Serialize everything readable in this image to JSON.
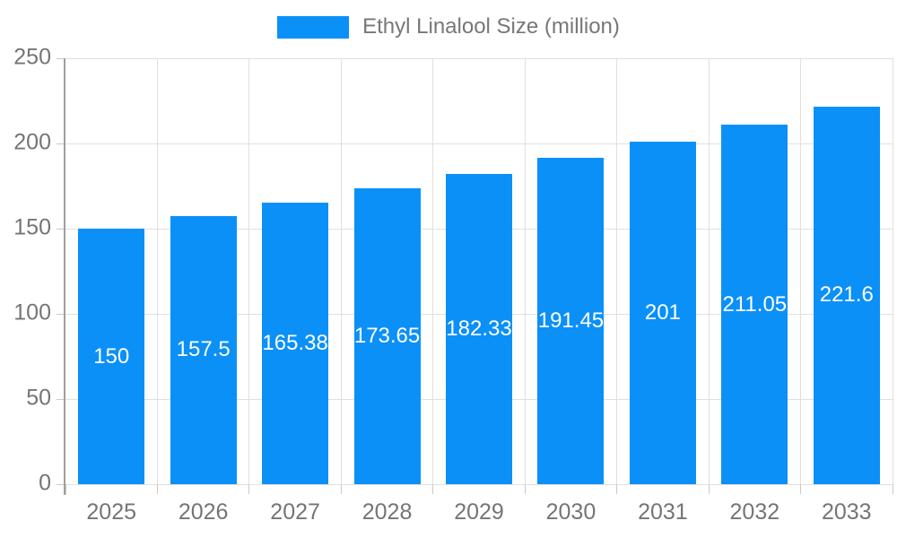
{
  "legend": {
    "label": "Ethyl Linalool Size (million)"
  },
  "chart_data": {
    "type": "bar",
    "title": "Ethyl Linalool Size (million)",
    "categories": [
      "2025",
      "2026",
      "2027",
      "2028",
      "2029",
      "2030",
      "2031",
      "2032",
      "2033"
    ],
    "series": [
      {
        "name": "Ethyl Linalool Size (million)",
        "values": [
          150,
          157.5,
          165.38,
          173.65,
          182.33,
          191.45,
          201,
          211.05,
          221.6
        ]
      }
    ],
    "value_labels": [
      "150",
      "157.5",
      "165.38",
      "173.65",
      "182.33",
      "191.45",
      "201",
      "211.05",
      "221.6"
    ],
    "xlabel": "",
    "ylabel": "",
    "ylim": [
      0,
      250
    ],
    "y_ticks": [
      0,
      50,
      100,
      150,
      200,
      250
    ],
    "grid": true,
    "legend_position": "top",
    "colors": {
      "bar": "#0b90f8",
      "bar_label_text": "#ffffff",
      "axis_line": "#9e9e9e",
      "gridline": "#e0e0e0",
      "tick_stub": "#c9c9c9",
      "tick_text": "#757575",
      "legend_text": "#777777",
      "background": "#ffffff"
    }
  }
}
